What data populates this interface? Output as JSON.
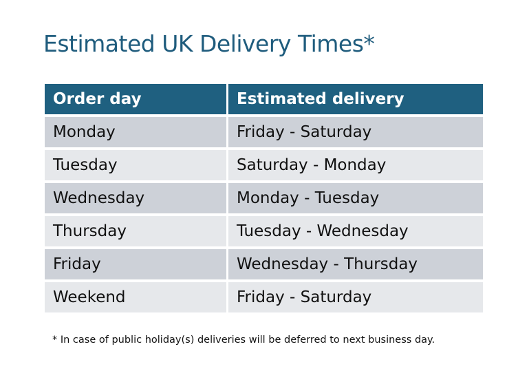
{
  "title": "Estimated UK Delivery Times*",
  "table": {
    "headers": [
      "Order day",
      "Estimated delivery"
    ],
    "rows": [
      [
        "Monday",
        "Friday - Saturday"
      ],
      [
        "Tuesday",
        "Saturday - Monday"
      ],
      [
        "Wednesday",
        "Monday - Tuesday"
      ],
      [
        "Thursday",
        "Tuesday - Wednesday"
      ],
      [
        "Friday",
        "Wednesday - Thursday"
      ],
      [
        "Weekend",
        "Friday - Saturday"
      ]
    ]
  },
  "footnote": "* In case of public holiday(s) deliveries will be deferred to next business day.",
  "colors": {
    "title": "#1f5c7d",
    "header": "#1f6080",
    "row_dark": "#cdd1d8",
    "row_light": "#e6e8eb"
  }
}
